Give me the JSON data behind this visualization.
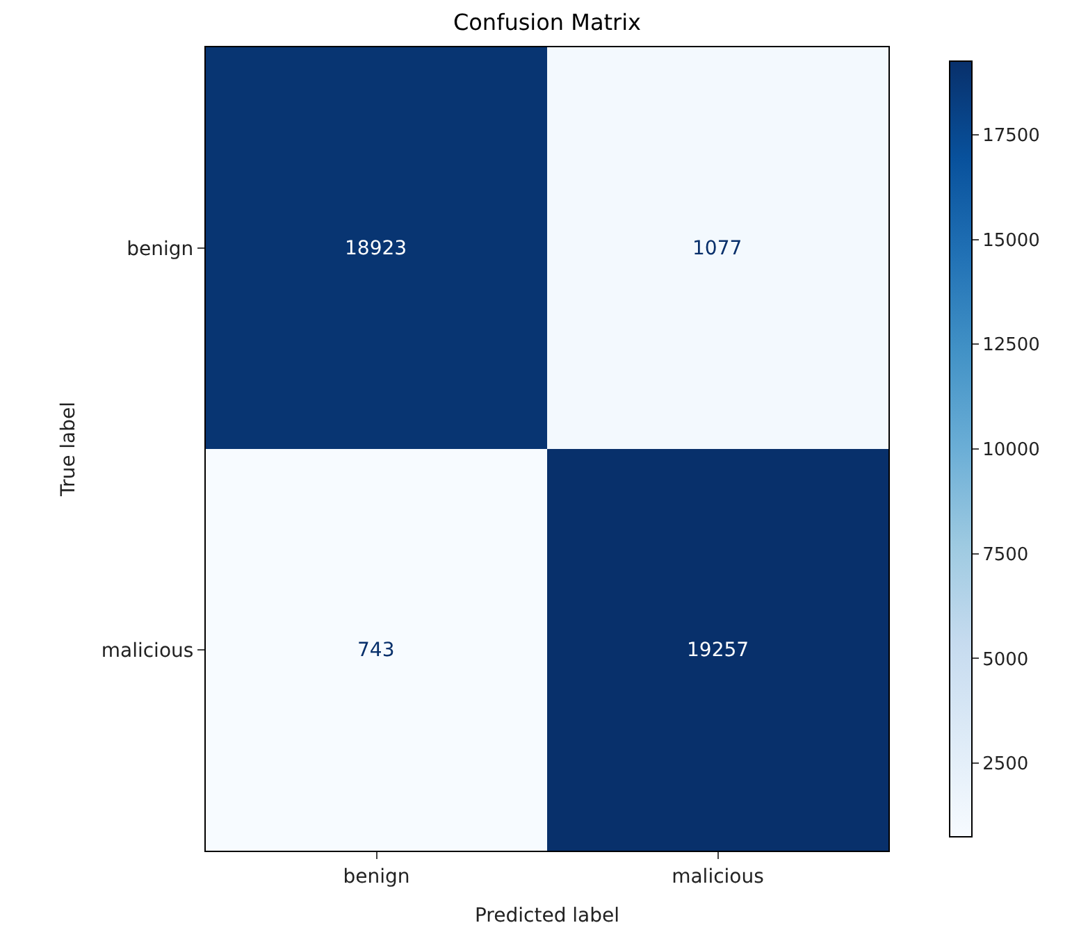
{
  "chart_data": {
    "type": "heatmap",
    "title": "Confusion Matrix",
    "xlabel": "Predicted label",
    "ylabel": "True label",
    "categories": [
      "benign",
      "malicious"
    ],
    "y_categories": [
      "benign",
      "malicious"
    ],
    "cells": [
      [
        18923,
        1077
      ],
      [
        743,
        19257
      ]
    ],
    "clim": [
      743,
      19257
    ],
    "cticks": [
      2500,
      5000,
      7500,
      10000,
      12500,
      15000,
      17500
    ],
    "data_labels": true
  }
}
